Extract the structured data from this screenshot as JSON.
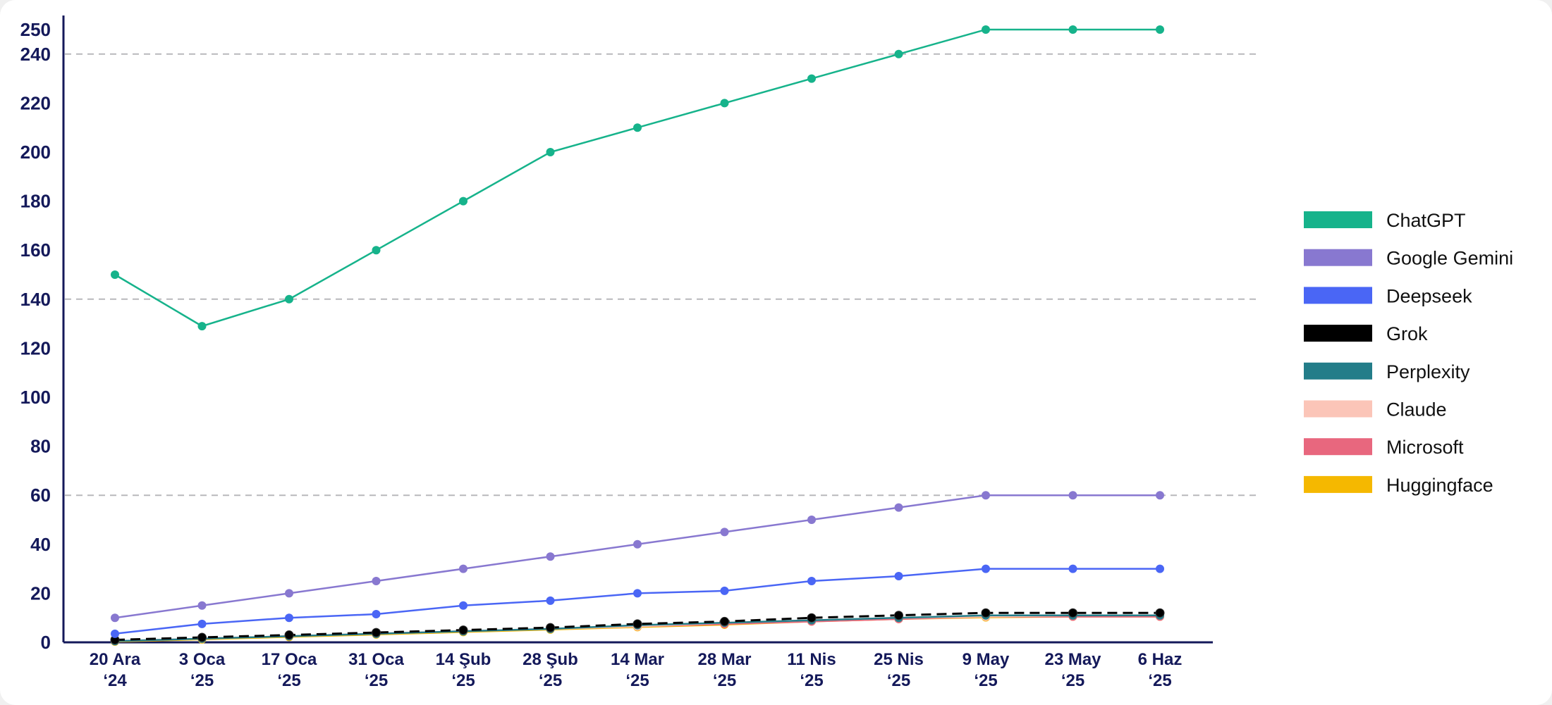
{
  "chart_data": {
    "type": "line",
    "title": "",
    "xlabel": "",
    "ylabel": "",
    "ylim": [
      0,
      250
    ],
    "yticks": [
      0,
      20,
      40,
      60,
      80,
      100,
      120,
      140,
      160,
      180,
      200,
      220,
      240,
      250
    ],
    "grid": {
      "y": [
        60,
        140,
        240
      ],
      "style": "dashed"
    },
    "legend_position": "right",
    "categories": [
      [
        "20 Ara",
        "‘24"
      ],
      [
        "3 Oca",
        "‘25"
      ],
      [
        "17 Oca",
        "‘25"
      ],
      [
        "31 Oca",
        "‘25"
      ],
      [
        "14 Şub",
        "‘25"
      ],
      [
        "28 Şub",
        "‘25"
      ],
      [
        "14 Mar",
        "‘25"
      ],
      [
        "28 Mar",
        "‘25"
      ],
      [
        "11 Nis",
        "‘25"
      ],
      [
        "25 Nis",
        "‘25"
      ],
      [
        "9 May",
        "‘25"
      ],
      [
        "23 May",
        "‘25"
      ],
      [
        "6 Haz",
        "‘25"
      ]
    ],
    "series": [
      {
        "name": "ChatGPT",
        "color": "#16b38b",
        "values": [
          150,
          129,
          140,
          160,
          180,
          200,
          210,
          220,
          230,
          240,
          250,
          250,
          250
        ]
      },
      {
        "name": "Google Gemini",
        "color": "#8878d0",
        "values": [
          10,
          15,
          20,
          25,
          30,
          35,
          40,
          45,
          50,
          55,
          60,
          60,
          60
        ]
      },
      {
        "name": "Deepseek",
        "color": "#4a66f5",
        "values": [
          3.5,
          7.5,
          10,
          11.5,
          15,
          17,
          20,
          21,
          25,
          27,
          30,
          30,
          30
        ]
      },
      {
        "name": "Grok",
        "color": "#000000",
        "dashed": true,
        "values": [
          1,
          2,
          3,
          4,
          5,
          6,
          7.5,
          8.5,
          10,
          11,
          12,
          12,
          12
        ]
      },
      {
        "name": "Perplexity",
        "color": "#237d89",
        "values": [
          0.5,
          1.5,
          2.5,
          3.5,
          4.5,
          5.5,
          7,
          8,
          9,
          10,
          11,
          11,
          11
        ]
      },
      {
        "name": "Claude",
        "color": "#fbc5b8",
        "values": [
          0.5,
          1.5,
          2.5,
          3.5,
          4.5,
          5.5,
          6.5,
          8,
          9,
          10,
          10.5,
          11,
          11
        ]
      },
      {
        "name": "Microsoft",
        "color": "#e8677e",
        "values": [
          0.5,
          1.5,
          2.5,
          3.5,
          4.5,
          5.5,
          6.5,
          7.5,
          8.5,
          9.5,
          10.5,
          10.5,
          10.5
        ]
      },
      {
        "name": "Huggingface",
        "color": "#f5b800",
        "values": [
          0.3,
          1.2,
          2.2,
          3.2,
          4.2,
          5.2,
          6.2,
          7.2,
          8.5,
          9.5,
          10.2,
          10.5,
          10.5
        ]
      }
    ]
  }
}
